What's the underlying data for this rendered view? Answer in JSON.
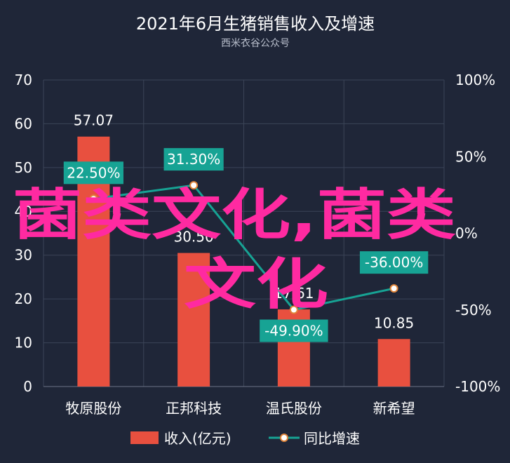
{
  "chart_data": {
    "type": "bar",
    "title": "2021年6月生猪销售收入及增速",
    "subtitle": "西米衣谷公众号",
    "categories": [
      "牧原股份",
      "正邦科技",
      "温氏股份",
      "新希望"
    ],
    "series": [
      {
        "name": "收入(亿元)",
        "type": "bar",
        "axis": "left",
        "values": [
          57.07,
          30.5,
          17.61,
          10.85
        ],
        "labels": [
          "57.07",
          "30.50",
          "17.61",
          "10.85"
        ],
        "color": "#e8503f"
      },
      {
        "name": "同比增速",
        "type": "line",
        "axis": "right",
        "values": [
          22.5,
          31.3,
          -49.9,
          -36.0
        ],
        "labels": [
          "22.50%",
          "31.30%",
          "-49.90%",
          "-36.00%"
        ],
        "color": "#17a394"
      }
    ],
    "left_axis": {
      "ylim": [
        0,
        70
      ],
      "ticks": [
        "0",
        "10",
        "20",
        "30",
        "40",
        "50",
        "60",
        "70"
      ]
    },
    "right_axis": {
      "ylim": [
        -100,
        100
      ],
      "ticks": [
        "-100%",
        "-50%",
        "0%",
        "50%",
        "100%"
      ]
    },
    "grid": true,
    "legend_position": "bottom",
    "watermark": "菌类文化,菌类文化"
  }
}
